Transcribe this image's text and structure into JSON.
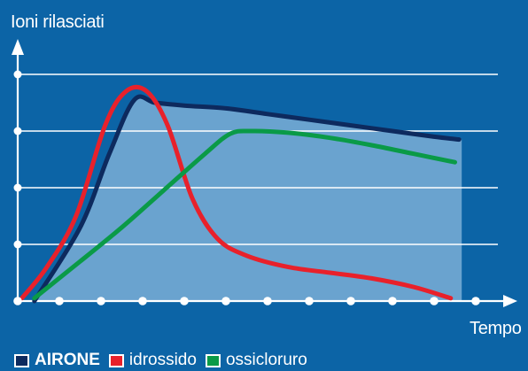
{
  "colors": {
    "background": "#0c64a6",
    "area": "#6aa3cf",
    "grid": "#ffffff",
    "axis": "#ffffff"
  },
  "chart_data": {
    "type": "line",
    "ylabel": "Ioni rilasciati",
    "xlabel": "Tempo",
    "xlim": [
      0,
      11
    ],
    "ylim": [
      0,
      4.6
    ],
    "x_ticks": [
      0,
      1,
      2,
      3,
      4,
      5,
      6,
      7,
      8,
      9,
      10,
      11
    ],
    "y_ticks": [
      0,
      1,
      2,
      3,
      4
    ],
    "grid": true,
    "legend_position": "bottom",
    "series": [
      {
        "name": "AIRONE",
        "color": "#0d2a5e",
        "bold": true,
        "filled": true,
        "points": [
          [
            0.4,
            0
          ],
          [
            1.5,
            1.3
          ],
          [
            2.2,
            2.6
          ],
          [
            2.8,
            3.55
          ],
          [
            3.3,
            3.5
          ],
          [
            4,
            3.45
          ],
          [
            5,
            3.4
          ],
          [
            6,
            3.3
          ],
          [
            7,
            3.2
          ],
          [
            8,
            3.1
          ],
          [
            9,
            3.0
          ],
          [
            10,
            2.9
          ],
          [
            10.6,
            2.85
          ]
        ]
      },
      {
        "name": "idrossido",
        "color": "#e8212b",
        "bold": false,
        "filled": false,
        "points": [
          [
            0.1,
            0.05
          ],
          [
            0.7,
            0.6
          ],
          [
            1.4,
            1.5
          ],
          [
            2.1,
            3.1
          ],
          [
            2.6,
            3.7
          ],
          [
            3.1,
            3.7
          ],
          [
            3.6,
            3.1
          ],
          [
            4.2,
            1.8
          ],
          [
            4.8,
            1.1
          ],
          [
            5.5,
            0.8
          ],
          [
            6.5,
            0.6
          ],
          [
            7.5,
            0.5
          ],
          [
            8.5,
            0.4
          ],
          [
            9.5,
            0.25
          ],
          [
            10.4,
            0.05
          ]
        ]
      },
      {
        "name": "ossicloruro",
        "color": "#0a9a47",
        "bold": false,
        "filled": false,
        "points": [
          [
            0.4,
            0.05
          ],
          [
            1.5,
            0.7
          ],
          [
            2.5,
            1.3
          ],
          [
            3.5,
            1.95
          ],
          [
            4.5,
            2.6
          ],
          [
            5.1,
            2.95
          ],
          [
            5.6,
            3.0
          ],
          [
            6.5,
            2.97
          ],
          [
            7.5,
            2.88
          ],
          [
            8.5,
            2.75
          ],
          [
            9.5,
            2.6
          ],
          [
            10.5,
            2.45
          ]
        ]
      }
    ]
  }
}
